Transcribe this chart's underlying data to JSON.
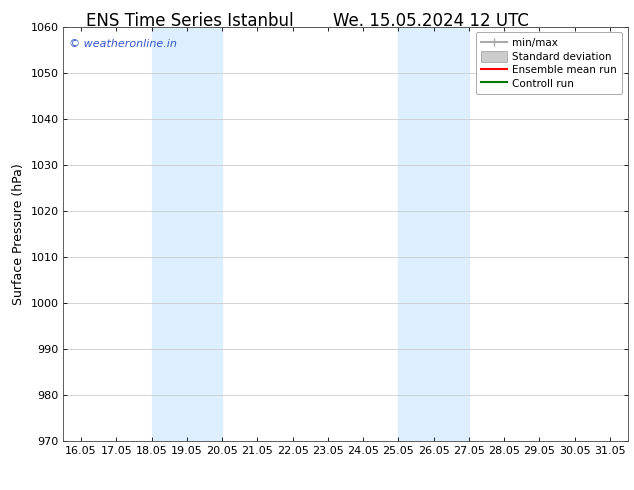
{
  "title_left": "ENS Time Series Istanbul",
  "title_right": "We. 15.05.2024 12 UTC",
  "ylabel": "Surface Pressure (hPa)",
  "ylim": [
    970,
    1060
  ],
  "yticks": [
    970,
    980,
    990,
    1000,
    1010,
    1020,
    1030,
    1040,
    1050,
    1060
  ],
  "x_values": [
    16.05,
    17.05,
    18.05,
    19.05,
    20.05,
    21.05,
    22.05,
    23.05,
    24.05,
    25.05,
    26.05,
    27.05,
    28.05,
    29.05,
    30.05,
    31.05
  ],
  "xtick_labels": [
    "16.05",
    "17.05",
    "18.05",
    "19.05",
    "20.05",
    "21.05",
    "22.05",
    "23.05",
    "24.05",
    "25.05",
    "26.05",
    "27.05",
    "28.05",
    "29.05",
    "30.05",
    "31.05"
  ],
  "xlim": [
    15.55,
    31.55
  ],
  "shaded_bands": [
    {
      "x_start": 18.05,
      "x_end": 20.05
    },
    {
      "x_start": 25.05,
      "x_end": 27.05
    }
  ],
  "shaded_color": "#ddeeff",
  "watermark_text": "© weatheronline.in",
  "watermark_color": "#3355cc",
  "background_color": "#ffffff",
  "plot_bg_color": "#ffffff",
  "grid_color": "#cccccc",
  "legend_items": [
    {
      "label": "min/max",
      "color": "#aaaaaa",
      "lw": 1.5,
      "style": "minmax"
    },
    {
      "label": "Standard deviation",
      "color": "#cccccc",
      "lw": 6,
      "style": "bar"
    },
    {
      "label": "Ensemble mean run",
      "color": "#ff0000",
      "lw": 1.5,
      "style": "line"
    },
    {
      "label": "Controll run",
      "color": "#007700",
      "lw": 1.5,
      "style": "line"
    }
  ],
  "title_fontsize": 12,
  "axis_fontsize": 9,
  "tick_fontsize": 8,
  "watermark_fontsize": 8
}
